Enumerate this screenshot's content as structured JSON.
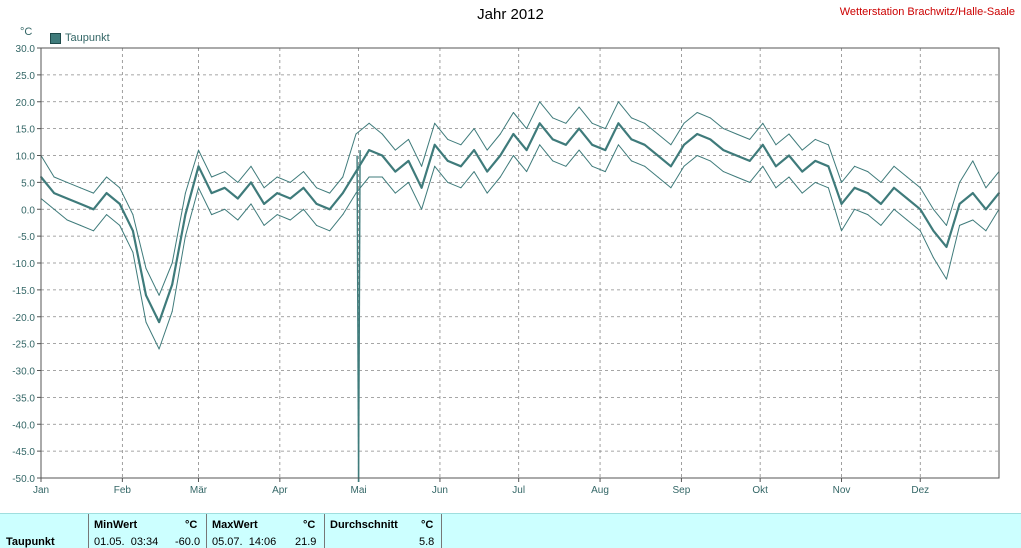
{
  "title": "Jahr 2012",
  "station": "Wetterstation Brachwitz/Halle-Saale",
  "stats": {
    "row_label": "Taupunkt",
    "min": {
      "header": "MinWert",
      "unit": "°C",
      "date": "01.05.  03:34",
      "value": "-60.0"
    },
    "max": {
      "header": "MaxWert",
      "unit": "°C",
      "date": "05.07.  14:06",
      "value": "21.9"
    },
    "avg": {
      "header": "Durchschnitt",
      "unit": "°C",
      "value": "5.8"
    }
  },
  "chart_data": {
    "type": "line",
    "title": "Jahr 2012",
    "ylabel": "°C",
    "ylim": [
      -50,
      30
    ],
    "yticks": [
      30,
      25,
      20,
      15,
      10,
      5,
      0,
      -5,
      -10,
      -15,
      -20,
      -25,
      -30,
      -35,
      -40,
      -45,
      -50
    ],
    "ytick_labels": [
      "30.0",
      "25.0",
      "20.0",
      "15.0",
      "10.0",
      "5.0",
      "0.0",
      "-5.0",
      "-10.0",
      "-15.0",
      "-20.0",
      "-25.0",
      "-30.0",
      "-35.0",
      "-40.0",
      "-45.0",
      "-50.0"
    ],
    "x_unit": "day of year",
    "xlim": [
      1,
      366
    ],
    "xticks": [
      1,
      32,
      61,
      92,
      122,
      153,
      183,
      214,
      245,
      275,
      306,
      336
    ],
    "categories": [
      "Jan",
      "Feb",
      "Mär",
      "Apr",
      "Mai",
      "Jun",
      "Jul",
      "Aug",
      "Sep",
      "Okt",
      "Nov",
      "Dez"
    ],
    "grid": true,
    "legend": "top-left",
    "colors": {
      "series": "#3f7b7b",
      "grid": "#888888",
      "axis_text": "#336666"
    },
    "x": [
      1,
      6,
      11,
      16,
      21,
      26,
      31,
      36,
      41,
      46,
      51,
      56,
      61,
      66,
      71,
      76,
      81,
      86,
      91,
      96,
      101,
      106,
      111,
      116,
      121,
      126,
      131,
      136,
      141,
      146,
      151,
      156,
      161,
      166,
      171,
      176,
      181,
      186,
      191,
      196,
      201,
      206,
      211,
      216,
      221,
      226,
      231,
      236,
      241,
      246,
      251,
      256,
      261,
      266,
      271,
      276,
      281,
      286,
      291,
      296,
      301,
      306,
      311,
      316,
      321,
      326,
      331,
      336,
      341,
      346,
      351,
      356,
      361,
      366
    ],
    "series": [
      {
        "name": "Taupunkt",
        "role": "mean",
        "values": [
          6,
          3,
          2,
          1,
          0,
          3,
          1,
          -4,
          -16,
          -21,
          -14,
          -1,
          8,
          3,
          4,
          2,
          5,
          1,
          3,
          2,
          4,
          1,
          0,
          3,
          7,
          11,
          10,
          7,
          9,
          4,
          12,
          9,
          8,
          11,
          7,
          10,
          14,
          11,
          16,
          13,
          12,
          15,
          12,
          11,
          16,
          13,
          12,
          10,
          8,
          12,
          14,
          13,
          11,
          10,
          9,
          12,
          8,
          10,
          7,
          9,
          8,
          1,
          4,
          3,
          1,
          4,
          2,
          0,
          -4,
          -7,
          1,
          3,
          0,
          3
        ]
      },
      {
        "name": "Taupunkt max",
        "role": "max",
        "values": [
          10,
          6,
          5,
          4,
          3,
          6,
          4,
          -1,
          -11,
          -16,
          -10,
          3,
          11,
          6,
          7,
          5,
          8,
          4,
          6,
          5,
          7,
          4,
          3,
          6,
          14,
          16,
          14,
          11,
          13,
          8,
          16,
          13,
          12,
          15,
          11,
          14,
          18,
          15,
          20,
          17,
          16,
          19,
          16,
          15,
          20,
          17,
          16,
          14,
          12,
          16,
          18,
          17,
          15,
          14,
          13,
          16,
          12,
          14,
          11,
          13,
          12,
          5,
          8,
          7,
          5,
          8,
          6,
          4,
          0,
          -3,
          5,
          9,
          4,
          7
        ]
      },
      {
        "name": "Taupunkt min",
        "role": "min",
        "values": [
          2,
          0,
          -2,
          -3,
          -4,
          -1,
          -3,
          -8,
          -21,
          -26,
          -19,
          -5,
          4,
          -1,
          0,
          -2,
          1,
          -3,
          -1,
          -2,
          0,
          -3,
          -4,
          -1,
          3,
          6,
          6,
          3,
          5,
          0,
          8,
          5,
          4,
          7,
          3,
          6,
          10,
          7,
          12,
          9,
          8,
          11,
          8,
          7,
          12,
          9,
          8,
          6,
          4,
          8,
          10,
          9,
          7,
          6,
          5,
          8,
          4,
          6,
          3,
          5,
          4,
          -4,
          0,
          -1,
          -3,
          0,
          -2,
          -4,
          -9,
          -13,
          -3,
          -2,
          -4,
          0
        ]
      }
    ],
    "spike": {
      "x": 122,
      "y": -60,
      "note": "MinWert"
    }
  }
}
